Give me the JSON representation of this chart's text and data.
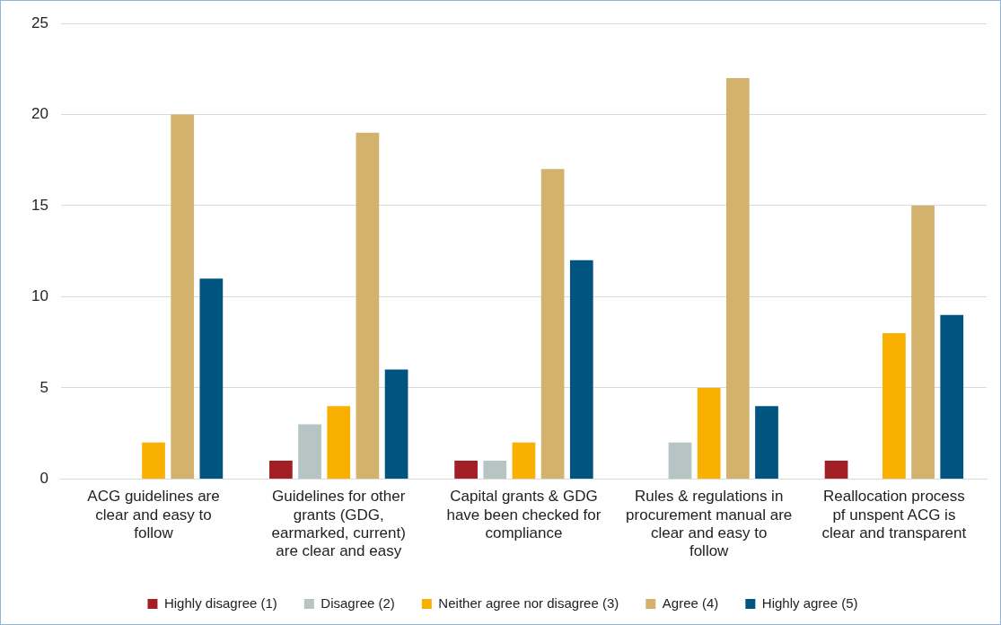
{
  "chart_data": {
    "type": "bar",
    "categories": [
      "ACG guidelines are clear and easy to follow",
      "Guidelines for other grants (GDG, earmarked, current) are clear and easy",
      "Capital grants & GDG have been checked for compliance",
      "Rules & regulations in procurement manual are clear and easy to follow",
      "Reallocation process pf unspent ACG is clear and transparent"
    ],
    "series": [
      {
        "name": "Highly disagree (1)",
        "color": "#a31f26",
        "values": [
          0,
          1,
          1,
          0,
          1
        ]
      },
      {
        "name": "Disagree (2)",
        "color": "#b6c5c4",
        "values": [
          0,
          3,
          1,
          2,
          0
        ]
      },
      {
        "name": "Neither agree nor disagree (3)",
        "color": "#f9b000",
        "values": [
          2,
          4,
          2,
          5,
          8
        ]
      },
      {
        "name": "Agree (4)",
        "color": "#d3b26d",
        "values": [
          20,
          19,
          17,
          22,
          15
        ]
      },
      {
        "name": "Highly agree (5)",
        "color": "#005580",
        "values": [
          11,
          6,
          12,
          4,
          9
        ]
      }
    ],
    "ylim": [
      0,
      25
    ],
    "yticks": [
      0,
      5,
      10,
      15,
      20,
      25
    ],
    "grid": "y",
    "legend": "bottom"
  }
}
